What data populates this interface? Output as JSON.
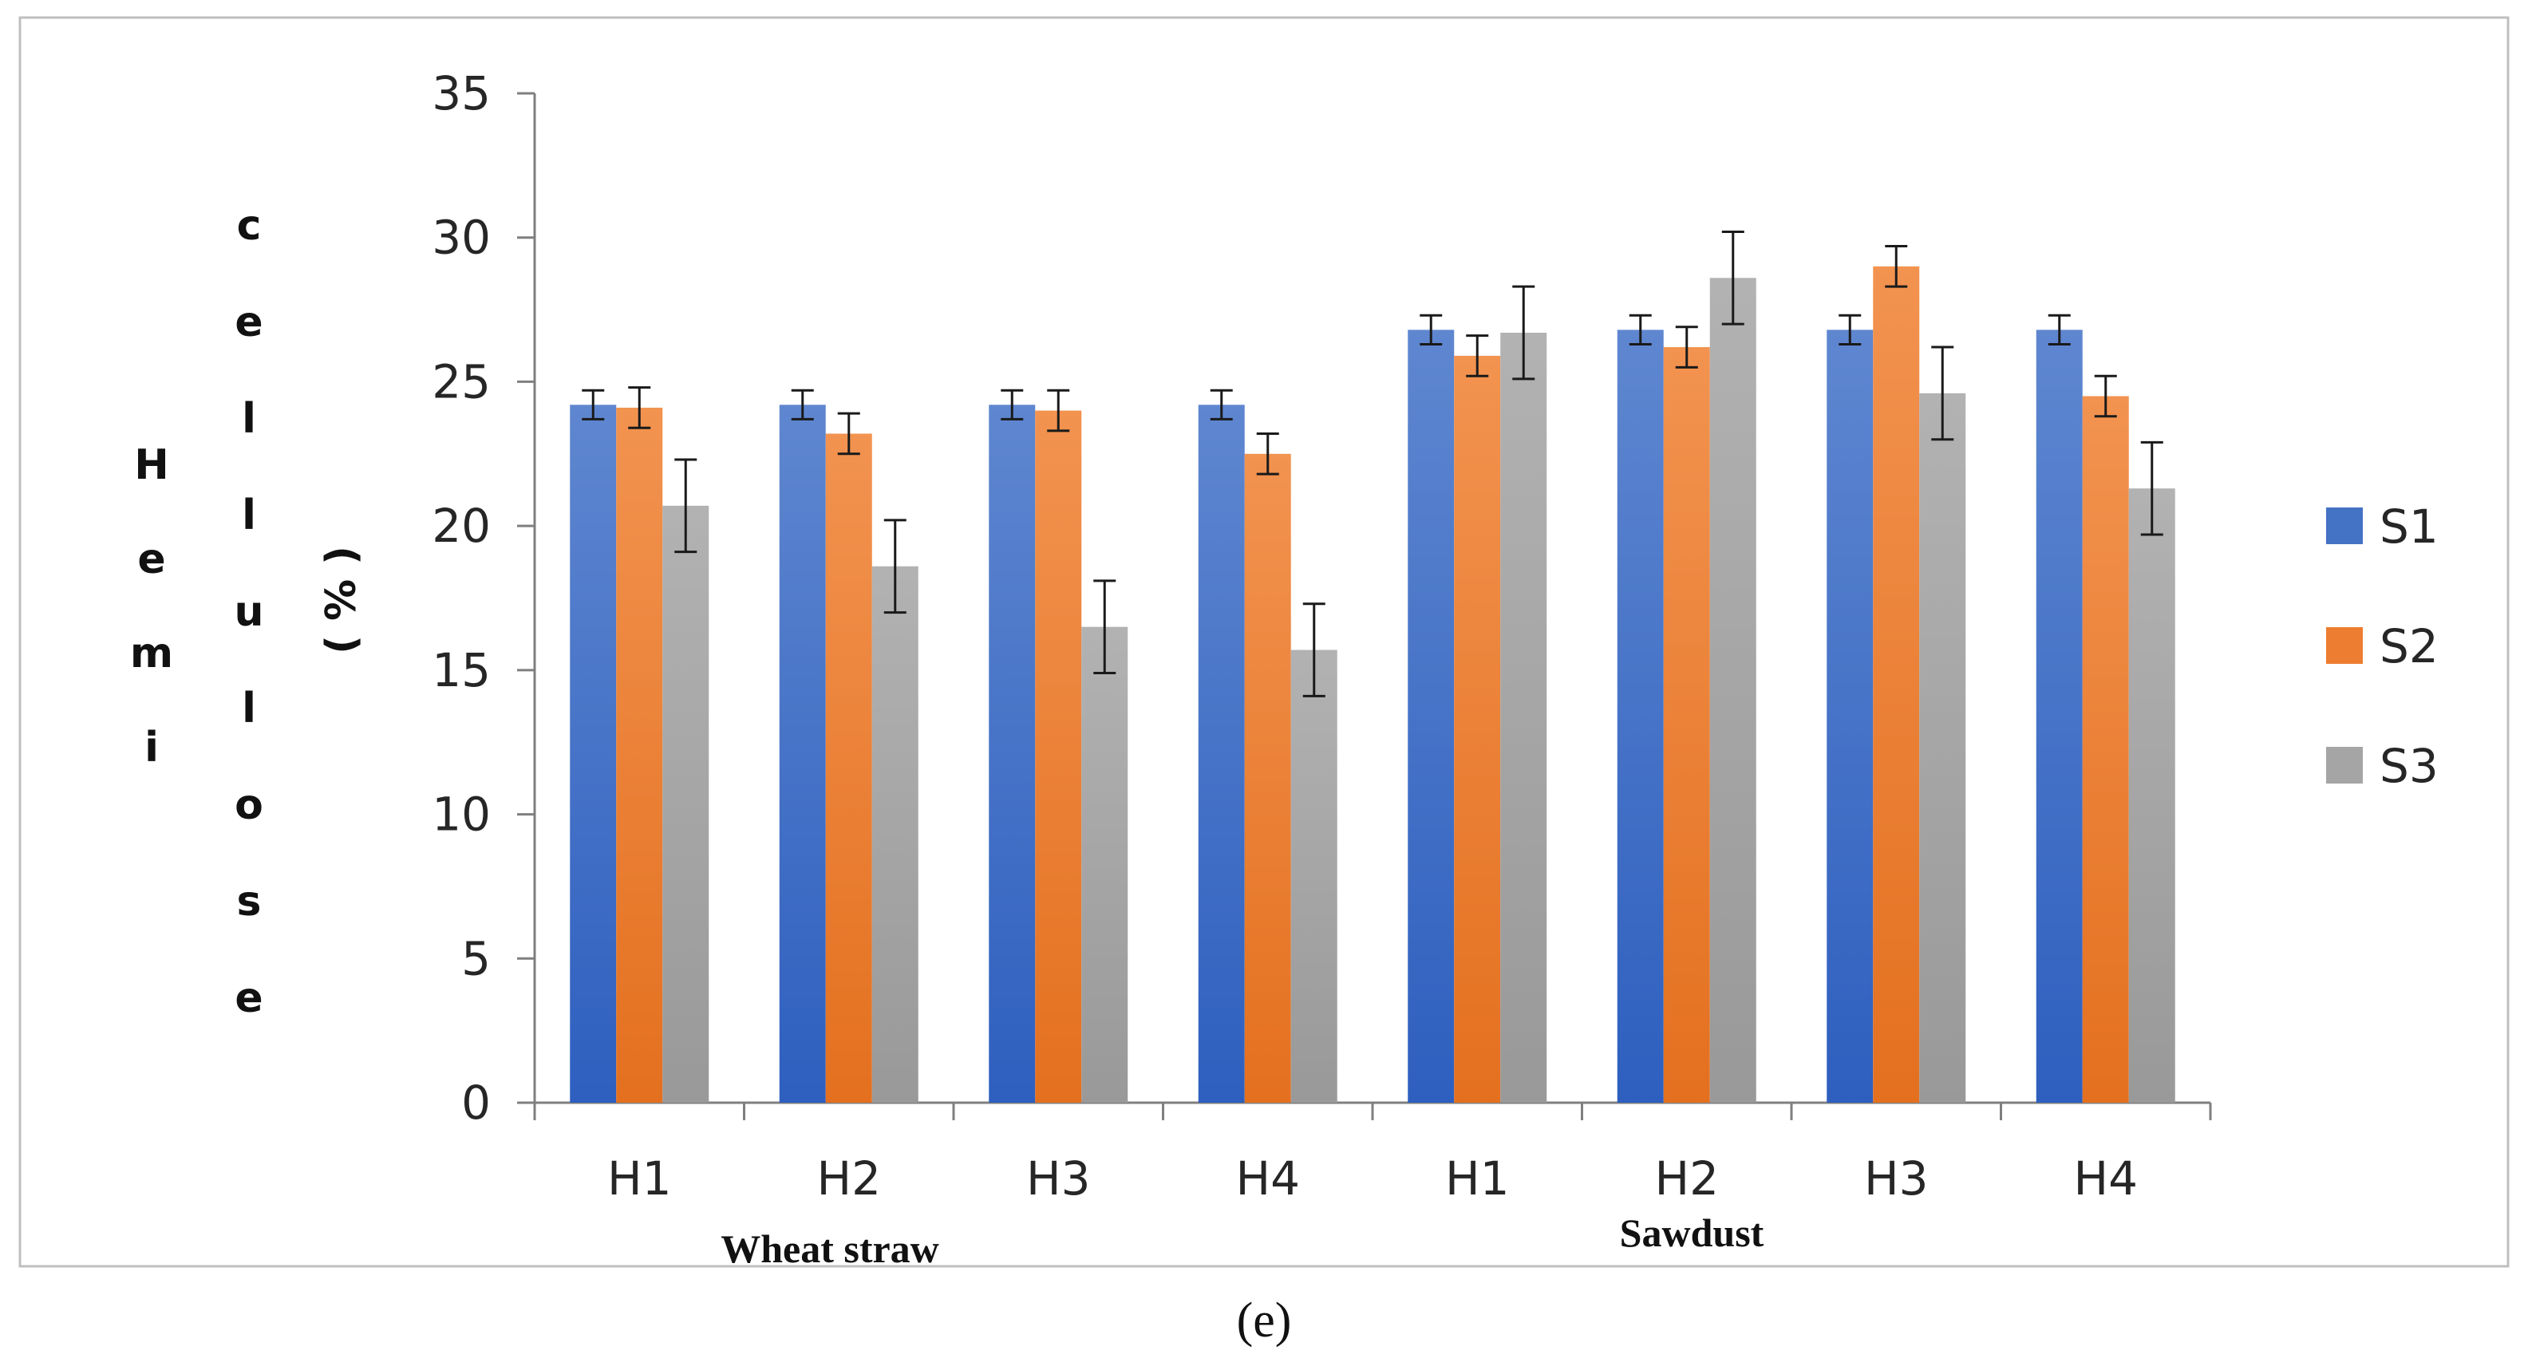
{
  "chart_data": {
    "type": "bar",
    "title": "",
    "xlabel": "",
    "ylabel": "Hemicellulose (%)",
    "ylabel_column1": [
      "H",
      "e",
      "m",
      "i"
    ],
    "ylabel_column2": [
      "c",
      "e",
      "l",
      "l",
      "u",
      "l",
      "o",
      "s",
      "e"
    ],
    "ylabel_unit": "( % )",
    "ylim": [
      0,
      35
    ],
    "yticks": [
      "0",
      "5",
      "10",
      "15",
      "20",
      "25",
      "30",
      "35"
    ],
    "ytick_values": [
      0,
      5,
      10,
      15,
      20,
      25,
      30,
      35
    ],
    "categories": [
      "H1",
      "H2",
      "H3",
      "H4",
      "H1",
      "H2",
      "H3",
      "H4"
    ],
    "groups": [
      {
        "label": "Wheat straw",
        "categories": [
          "H1",
          "H2",
          "H3",
          "H4"
        ]
      },
      {
        "label": "Sawdust",
        "categories": [
          "H1",
          "H2",
          "H3",
          "H4"
        ]
      }
    ],
    "series": [
      {
        "name": "S1",
        "color": "#4472C4",
        "values": [
          24.2,
          24.2,
          24.2,
          24.2,
          26.8,
          26.8,
          26.8,
          26.8
        ],
        "errors": [
          0.5,
          0.5,
          0.5,
          0.5,
          0.5,
          0.5,
          0.5,
          0.5
        ]
      },
      {
        "name": "S2",
        "color": "#ED7D31",
        "values": [
          24.1,
          23.2,
          24.0,
          22.5,
          25.9,
          26.2,
          29.0,
          24.5
        ],
        "errors": [
          0.7,
          0.7,
          0.7,
          0.7,
          0.7,
          0.7,
          0.7,
          0.7
        ]
      },
      {
        "name": "S3",
        "color": "#A5A5A5",
        "values": [
          20.7,
          18.6,
          16.5,
          15.7,
          26.7,
          28.6,
          24.6,
          21.3
        ],
        "errors": [
          1.6,
          1.6,
          1.6,
          1.6,
          1.6,
          1.6,
          1.6,
          1.6
        ]
      }
    ],
    "legend_position": "right",
    "grid": false
  },
  "panel_label": "(e)"
}
